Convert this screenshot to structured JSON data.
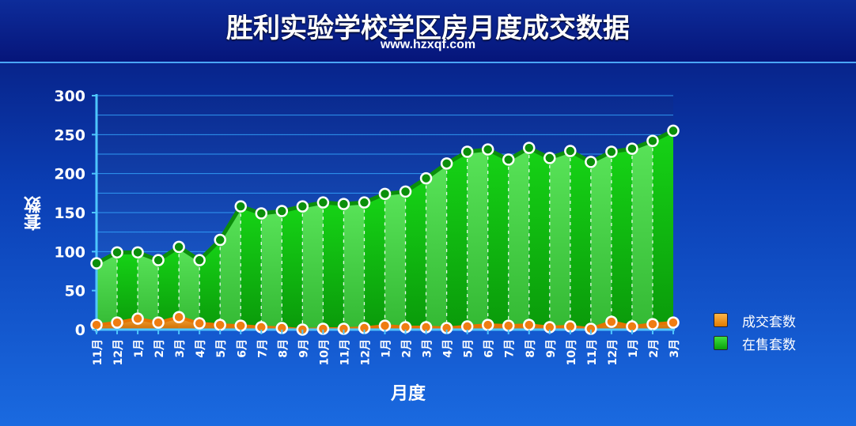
{
  "header": {
    "title": "胜利实验学校学区房月度成交数据",
    "subtitle": "www.hzxqf.com"
  },
  "chart_data": {
    "type": "area",
    "xlabel": "月度",
    "ylabel": "套数",
    "ylim": [
      0,
      300
    ],
    "yticks": [
      0,
      50,
      100,
      150,
      200,
      250,
      300
    ],
    "grid": true,
    "legend_position": "right",
    "categories": [
      "11月",
      "12月",
      "1月",
      "2月",
      "3月",
      "4月",
      "5月",
      "6月",
      "7月",
      "8月",
      "9月",
      "10月",
      "11月",
      "12月",
      "1月",
      "2月",
      "3月",
      "4月",
      "5月",
      "6月",
      "7月",
      "8月",
      "9月",
      "10月",
      "11月",
      "12月",
      "1月",
      "2月",
      "3月"
    ],
    "series": [
      {
        "name": "在售套数",
        "color": "#19c119",
        "values": [
          85,
          99,
          99,
          89,
          106,
          89,
          115,
          158,
          149,
          152,
          158,
          163,
          161,
          163,
          174,
          177,
          194,
          213,
          228,
          231,
          218,
          233,
          220,
          229,
          215,
          228,
          232,
          242,
          255
        ]
      },
      {
        "name": "成交套数",
        "color": "#f08a1a",
        "values": [
          6,
          9,
          14,
          9,
          16,
          8,
          6,
          5,
          3,
          2,
          0,
          1,
          1,
          2,
          5,
          3,
          3,
          2,
          4,
          6,
          5,
          6,
          3,
          4,
          1,
          10,
          4,
          7,
          9
        ]
      }
    ]
  }
}
